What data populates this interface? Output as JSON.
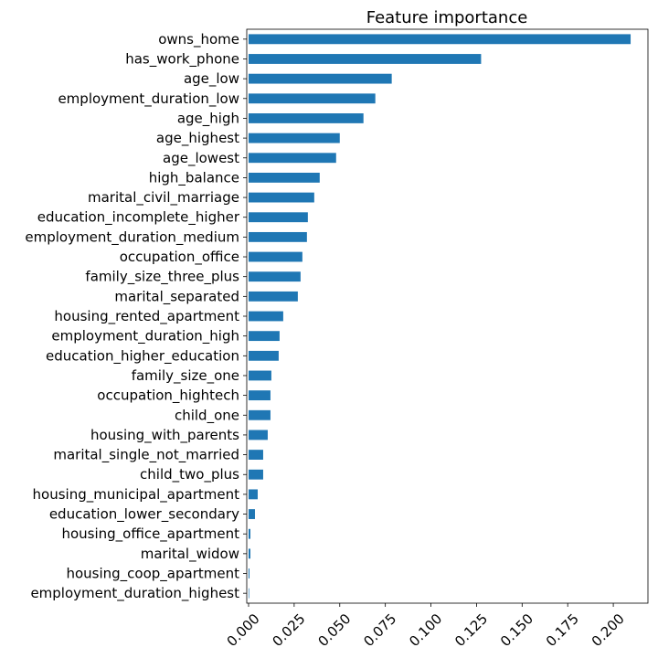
{
  "chart_data": {
    "type": "bar",
    "orientation": "horizontal",
    "title": "Feature importance",
    "xlabel": "",
    "ylabel": "",
    "xlim": [
      -0.001,
      0.219
    ],
    "xticks": [
      "0.000",
      "0.025",
      "0.050",
      "0.075",
      "0.100",
      "0.125",
      "0.150",
      "0.175",
      "0.200"
    ],
    "xtick_values": [
      0,
      0.025,
      0.05,
      0.075,
      0.1,
      0.125,
      0.15,
      0.175,
      0.2
    ],
    "grid": false,
    "legend": false,
    "bar_color": "#1f77b4",
    "categories": [
      "owns_home",
      "has_work_phone",
      "age_low",
      "employment_duration_low",
      "age_high",
      "age_highest",
      "age_lowest",
      "high_balance",
      "marital_civil_marriage",
      "education_incomplete_higher",
      "employment_duration_medium",
      "occupation_office",
      "family_size_three_plus",
      "marital_separated",
      "housing_rented_apartment",
      "employment_duration_high",
      "education_higher_education",
      "family_size_one",
      "occupation_hightech",
      "child_one",
      "housing_with_parents",
      "marital_single_not_married",
      "child_two_plus",
      "housing_municipal_apartment",
      "education_lower_secondary",
      "housing_office_apartment",
      "marital_widow",
      "housing_coop_apartment",
      "employment_duration_highest"
    ],
    "values": [
      0.2095,
      0.1275,
      0.0785,
      0.0695,
      0.063,
      0.05,
      0.048,
      0.039,
      0.036,
      0.0325,
      0.032,
      0.0295,
      0.0285,
      0.027,
      0.019,
      0.017,
      0.0165,
      0.0125,
      0.012,
      0.012,
      0.0105,
      0.008,
      0.008,
      0.005,
      0.0035,
      0.001,
      0.001,
      0.0005,
      0.0003
    ]
  }
}
